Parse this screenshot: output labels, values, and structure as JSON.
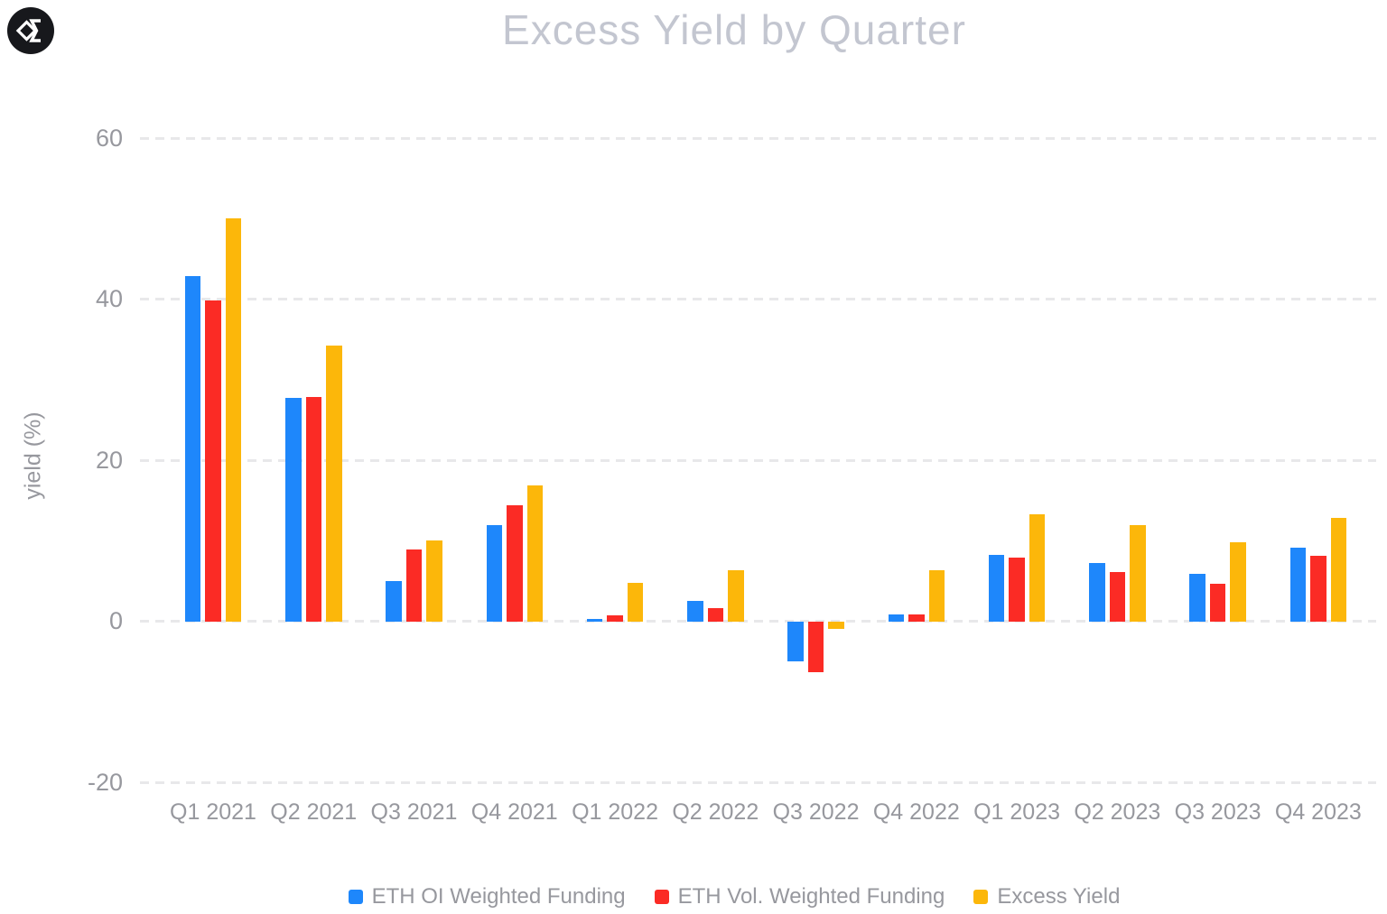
{
  "logo": {
    "icon_name": "sigma-diamond-logo-icon"
  },
  "title": "Excess Yield by Quarter",
  "chart_data": {
    "type": "bar",
    "title": "Excess Yield by Quarter",
    "xlabel": "",
    "ylabel": "yield (%)",
    "ylim": [
      -20,
      60
    ],
    "ytick_labels": [
      "60",
      "40",
      "20",
      "0",
      "-20"
    ],
    "ytick_values": [
      60,
      40,
      20,
      0,
      -20
    ],
    "grid": "horizontal-dashed",
    "legend_position": "bottom-center",
    "categories": [
      "Q1 2021",
      "Q2 2021",
      "Q3 2021",
      "Q4 2021",
      "Q1 2022",
      "Q2 2022",
      "Q3 2022",
      "Q4 2022",
      "Q1 2023",
      "Q2 2023",
      "Q3 2023",
      "Q4 2023"
    ],
    "series": [
      {
        "name": "ETH OI Weighted Funding",
        "color": "#1E87FB",
        "values": [
          42.9,
          27.7,
          5.0,
          11.9,
          0.3,
          2.5,
          -5.0,
          0.9,
          8.3,
          7.3,
          5.9,
          9.2
        ]
      },
      {
        "name": "ETH Vol. Weighted Funding",
        "color": "#FB2B25",
        "values": [
          39.9,
          27.9,
          8.9,
          14.4,
          0.7,
          1.7,
          -6.3,
          0.9,
          7.9,
          6.1,
          4.7,
          8.2
        ]
      },
      {
        "name": "Excess Yield",
        "color": "#FCB70A",
        "values": [
          50.0,
          34.3,
          10.0,
          16.9,
          4.8,
          6.4,
          -0.9,
          6.3,
          13.3,
          11.9,
          9.8,
          12.9
        ]
      }
    ]
  },
  "colors": {
    "background": "#FFFFFF",
    "title_text": "#C3C6D0",
    "axis_text": "#97989E",
    "gridline": "#E8E8EA",
    "logo_background": "#17181C",
    "logo_glyph": "#FFFFFF"
  }
}
